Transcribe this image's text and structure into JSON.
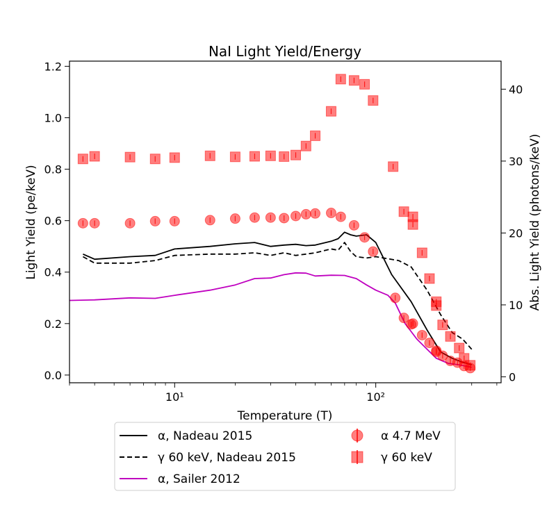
{
  "chart_data": {
    "type": "scatter",
    "title": "NaI Light Yield/Energy",
    "xlabel": "Temperature (T)",
    "ylabel": "Light Yield (pe/keV)",
    "y2label": "Abs. Light Yield (photons/keV)",
    "xscale": "log",
    "xlim": [
      3,
      420
    ],
    "ylim": [
      -0.03,
      1.22
    ],
    "y2lim": [
      -0.83,
      43.9
    ],
    "x_ticks": [
      10,
      100
    ],
    "x_tick_labels": [
      "10¹",
      "10²"
    ],
    "y_ticks": [
      0.0,
      0.2,
      0.4,
      0.6,
      0.8,
      1.0,
      1.2
    ],
    "y_tick_labels": [
      "0.0",
      "0.2",
      "0.4",
      "0.6",
      "0.8",
      "1.0",
      "1.2"
    ],
    "y2_ticks": [
      0,
      10,
      20,
      30,
      40
    ],
    "y2_tick_labels": [
      "0",
      "10",
      "20",
      "30",
      "40"
    ],
    "legend_position": "below plot",
    "series": [
      {
        "name": "α, Nadeau 2015",
        "kind": "line",
        "style": "solid",
        "color": "#000000",
        "x": [
          3.5,
          4,
          6,
          8,
          10,
          15,
          20,
          25,
          30,
          35,
          40,
          45,
          50,
          60,
          65,
          70,
          75,
          80,
          90,
          100,
          120,
          150,
          180,
          210,
          240,
          270,
          300
        ],
        "y": [
          0.47,
          0.45,
          0.46,
          0.465,
          0.49,
          0.5,
          0.51,
          0.515,
          0.5,
          0.505,
          0.508,
          0.503,
          0.505,
          0.52,
          0.53,
          0.555,
          0.545,
          0.54,
          0.545,
          0.515,
          0.39,
          0.285,
          0.175,
          0.09,
          0.065,
          0.05,
          0.04
        ]
      },
      {
        "name": "γ 60 keV, Nadeau 2015",
        "kind": "line",
        "style": "dashed",
        "color": "#000000",
        "x": [
          3.5,
          4,
          6,
          8,
          10,
          15,
          20,
          25,
          30,
          35,
          40,
          45,
          50,
          60,
          65,
          70,
          75,
          80,
          90,
          100,
          130,
          150,
          180,
          210,
          240,
          270,
          300
        ],
        "y": [
          0.46,
          0.435,
          0.435,
          0.445,
          0.465,
          0.47,
          0.47,
          0.475,
          0.465,
          0.475,
          0.465,
          0.47,
          0.475,
          0.49,
          0.485,
          0.515,
          0.48,
          0.46,
          0.455,
          0.46,
          0.445,
          0.42,
          0.33,
          0.235,
          0.165,
          0.14,
          0.1
        ]
      },
      {
        "name": "α, Sailer 2012",
        "kind": "line",
        "style": "solid",
        "color": "#bf00bf",
        "x": [
          3,
          4,
          6,
          8,
          10,
          15,
          20,
          25,
          30,
          35,
          40,
          45,
          50,
          60,
          70,
          80,
          90,
          100,
          115,
          125,
          140,
          160,
          180,
          200,
          230,
          260,
          300
        ],
        "y": [
          0.29,
          0.292,
          0.3,
          0.298,
          0.31,
          0.33,
          0.35,
          0.375,
          0.377,
          0.39,
          0.397,
          0.396,
          0.385,
          0.388,
          0.387,
          0.375,
          0.35,
          0.33,
          0.31,
          0.28,
          0.2,
          0.14,
          0.1,
          0.065,
          0.045,
          0.04,
          0.03
        ]
      },
      {
        "name": "α 4.7 MeV",
        "kind": "scatter",
        "marker": "circle",
        "color": "#ff0000",
        "x": [
          3.5,
          4,
          6,
          8,
          10,
          15,
          20,
          25,
          30,
          35,
          40,
          45,
          50,
          60,
          67,
          78,
          88,
          97,
          125,
          138,
          153,
          170,
          185,
          200,
          215,
          235,
          255,
          275,
          295,
          150,
          200
        ],
        "y": [
          0.59,
          0.59,
          0.59,
          0.598,
          0.598,
          0.602,
          0.608,
          0.612,
          0.612,
          0.61,
          0.618,
          0.625,
          0.628,
          0.63,
          0.615,
          0.582,
          0.535,
          0.48,
          0.3,
          0.222,
          0.2,
          0.155,
          0.125,
          0.095,
          0.075,
          0.055,
          0.048,
          0.035,
          0.027,
          0.197,
          0.09
        ]
      },
      {
        "name": "γ 60 keV",
        "kind": "scatter",
        "marker": "square",
        "color": "#ff0000",
        "x": [
          3.5,
          4,
          6,
          8,
          10,
          15,
          20,
          25,
          30,
          35,
          40,
          45,
          50,
          60,
          67,
          78,
          88,
          97,
          122,
          138,
          153,
          153,
          170,
          185,
          200,
          200,
          215,
          235,
          260,
          275,
          295
        ],
        "y": [
          0.84,
          0.85,
          0.847,
          0.84,
          0.845,
          0.852,
          0.848,
          0.85,
          0.852,
          0.849,
          0.855,
          0.89,
          0.93,
          1.025,
          1.15,
          1.145,
          1.13,
          1.067,
          0.81,
          0.635,
          0.615,
          0.585,
          0.475,
          0.375,
          0.285,
          0.27,
          0.195,
          0.15,
          0.105,
          0.065,
          0.038
        ]
      }
    ]
  }
}
